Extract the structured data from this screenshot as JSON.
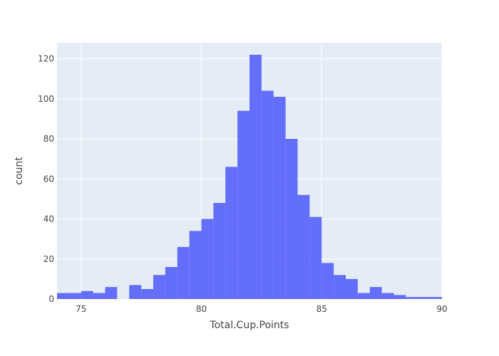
{
  "chart_data": {
    "type": "bar",
    "xlabel": "Total.Cup.Points",
    "ylabel": "count",
    "xlim": [
      74,
      90
    ],
    "ylim": [
      0,
      128
    ],
    "bin_width": 0.5,
    "x_ticks": [
      75,
      80,
      85,
      90
    ],
    "y_ticks": [
      0,
      20,
      40,
      60,
      80,
      100,
      120
    ],
    "grid": true,
    "colors": {
      "bar": "#636efa",
      "plot_bg": "#e5ecf6",
      "grid": "#ffffff"
    },
    "bins": [
      {
        "x0": 74.0,
        "x1": 74.5,
        "count": 3
      },
      {
        "x0": 74.5,
        "x1": 75.0,
        "count": 3
      },
      {
        "x0": 75.0,
        "x1": 75.5,
        "count": 4
      },
      {
        "x0": 75.5,
        "x1": 76.0,
        "count": 3
      },
      {
        "x0": 76.0,
        "x1": 76.5,
        "count": 6
      },
      {
        "x0": 76.5,
        "x1": 77.0,
        "count": 0
      },
      {
        "x0": 77.0,
        "x1": 77.5,
        "count": 7
      },
      {
        "x0": 77.5,
        "x1": 78.0,
        "count": 5
      },
      {
        "x0": 78.0,
        "x1": 78.5,
        "count": 12
      },
      {
        "x0": 78.5,
        "x1": 79.0,
        "count": 16
      },
      {
        "x0": 79.0,
        "x1": 79.5,
        "count": 26
      },
      {
        "x0": 79.5,
        "x1": 80.0,
        "count": 34
      },
      {
        "x0": 80.0,
        "x1": 80.5,
        "count": 40
      },
      {
        "x0": 80.5,
        "x1": 81.0,
        "count": 48
      },
      {
        "x0": 81.0,
        "x1": 81.5,
        "count": 66
      },
      {
        "x0": 81.5,
        "x1": 82.0,
        "count": 94
      },
      {
        "x0": 82.0,
        "x1": 82.5,
        "count": 122
      },
      {
        "x0": 82.5,
        "x1": 83.0,
        "count": 104
      },
      {
        "x0": 83.0,
        "x1": 83.5,
        "count": 101
      },
      {
        "x0": 83.5,
        "x1": 84.0,
        "count": 80
      },
      {
        "x0": 84.0,
        "x1": 84.5,
        "count": 52
      },
      {
        "x0": 84.5,
        "x1": 85.0,
        "count": 41
      },
      {
        "x0": 85.0,
        "x1": 85.5,
        "count": 18
      },
      {
        "x0": 85.5,
        "x1": 86.0,
        "count": 12
      },
      {
        "x0": 86.0,
        "x1": 86.5,
        "count": 10
      },
      {
        "x0": 86.5,
        "x1": 87.0,
        "count": 3
      },
      {
        "x0": 87.0,
        "x1": 87.5,
        "count": 6
      },
      {
        "x0": 87.5,
        "x1": 88.0,
        "count": 3
      },
      {
        "x0": 88.0,
        "x1": 88.5,
        "count": 2
      },
      {
        "x0": 88.5,
        "x1": 89.0,
        "count": 1
      },
      {
        "x0": 89.0,
        "x1": 89.5,
        "count": 1
      },
      {
        "x0": 89.5,
        "x1": 90.0,
        "count": 1
      }
    ]
  }
}
